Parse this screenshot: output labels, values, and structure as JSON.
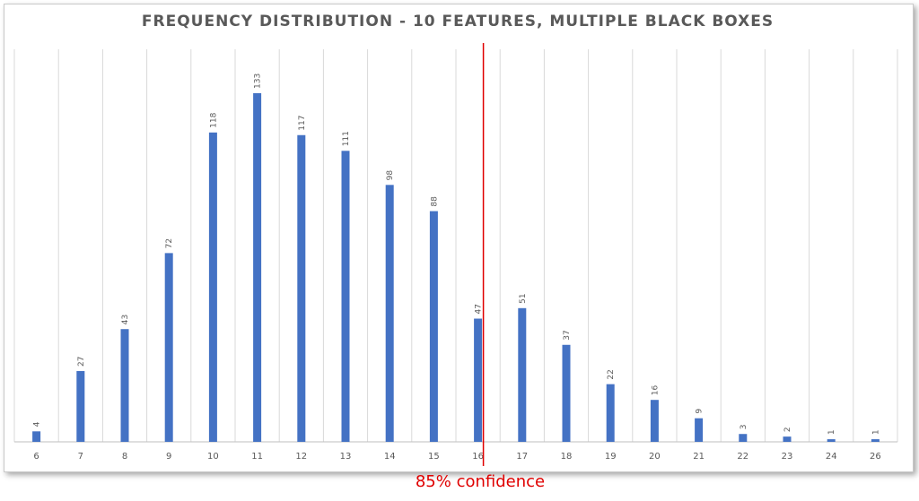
{
  "chart_data": {
    "type": "bar",
    "title": "FREQUENCY DISTRIBUTION - 10 FEATURES, MULTIPLE BLACK BOXES",
    "xlabel": "",
    "ylabel": "",
    "categories": [
      "6",
      "7",
      "8",
      "9",
      "10",
      "11",
      "12",
      "13",
      "14",
      "15",
      "16",
      "17",
      "18",
      "19",
      "20",
      "21",
      "22",
      "23",
      "24",
      "26"
    ],
    "values": [
      4,
      27,
      43,
      72,
      118,
      133,
      117,
      111,
      98,
      88,
      47,
      51,
      37,
      22,
      16,
      9,
      3,
      2,
      1,
      1
    ],
    "ylim": [
      0,
      140
    ],
    "grid": "vertical",
    "legend": "none",
    "bar_color": "#4472c4",
    "grid_color": "#d9d9d9",
    "reference_line": {
      "x_category": "16",
      "label": "85% confidence",
      "color": "#e00000"
    }
  }
}
